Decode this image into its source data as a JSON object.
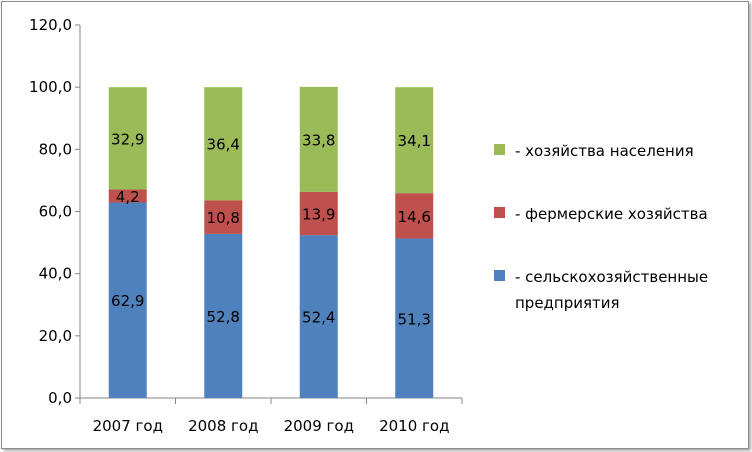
{
  "chart_data": {
    "type": "stacked-bar",
    "title": "",
    "xlabel": "",
    "ylabel": "",
    "ylim": [
      0,
      120
    ],
    "ytick_step": 20,
    "ytick_format": "one-decimal-comma",
    "grid": false,
    "legend_position": "right",
    "categories": [
      "2007 год",
      "2008 год",
      "2009 год",
      "2010 год"
    ],
    "series": [
      {
        "name": "- сельскохозяйственные предприятия",
        "color": "#4f81bd",
        "values": [
          62.9,
          52.8,
          52.4,
          51.3
        ],
        "labels": [
          "62,9",
          "52,8",
          "52,4",
          "51,3"
        ]
      },
      {
        "name": "- фермерские хозяйства",
        "color": "#c0504d",
        "values": [
          4.2,
          10.8,
          13.9,
          14.6
        ],
        "labels": [
          "4,2",
          "10,8",
          "13,9",
          "14,6"
        ]
      },
      {
        "name": "- хозяйства населения",
        "color": "#9bbb59",
        "values": [
          32.9,
          36.4,
          33.8,
          34.1
        ],
        "labels": [
          "32,9",
          "36,4",
          "33,8",
          "34,1"
        ]
      }
    ],
    "legend": [
      {
        "series": 2,
        "lines": [
          "- хозяйства населения"
        ]
      },
      {
        "series": 1,
        "lines": [
          "- фермерские хозяйства"
        ]
      },
      {
        "series": 0,
        "lines": [
          "- сельскохозяйственные",
          "предприятия"
        ]
      }
    ]
  }
}
